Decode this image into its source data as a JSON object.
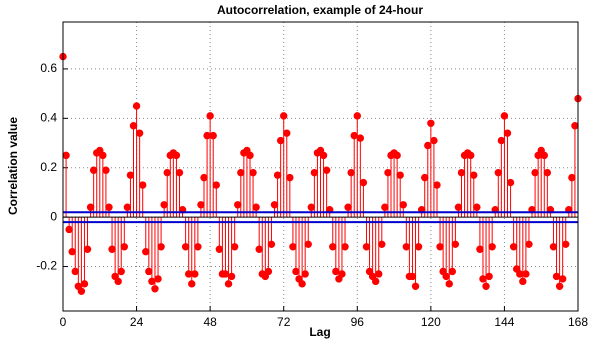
{
  "chart_data": {
    "type": "stem",
    "title": "Autocorrelation, example of 24-hour",
    "x_label": "Lag",
    "y_label": "Correlation value",
    "x": [
      0,
      1,
      2,
      3,
      4,
      5,
      6,
      7,
      8,
      9,
      10,
      11,
      12,
      13,
      14,
      15,
      16,
      17,
      18,
      19,
      20,
      21,
      22,
      23,
      24,
      25,
      26,
      27,
      28,
      29,
      30,
      31,
      32,
      33,
      34,
      35,
      36,
      37,
      38,
      39,
      40,
      41,
      42,
      43,
      44,
      45,
      46,
      47,
      48,
      49,
      50,
      51,
      52,
      53,
      54,
      55,
      56,
      57,
      58,
      59,
      60,
      61,
      62,
      63,
      64,
      65,
      66,
      67,
      68,
      69,
      70,
      71,
      72,
      73,
      74,
      75,
      76,
      77,
      78,
      79,
      80,
      81,
      82,
      83,
      84,
      85,
      86,
      87,
      88,
      89,
      90,
      91,
      92,
      93,
      94,
      95,
      96,
      97,
      98,
      99,
      100,
      101,
      102,
      103,
      104,
      105,
      106,
      107,
      108,
      109,
      110,
      111,
      112,
      113,
      114,
      115,
      116,
      117,
      118,
      119,
      120,
      121,
      122,
      123,
      124,
      125,
      126,
      127,
      128,
      129,
      130,
      131,
      132,
      133,
      134,
      135,
      136,
      137,
      138,
      139,
      140,
      141,
      142,
      143,
      144,
      145,
      146,
      147,
      148,
      149,
      150,
      151,
      152,
      153,
      154,
      155,
      156,
      157,
      158,
      159,
      160,
      161,
      162,
      163,
      164,
      165,
      166,
      167,
      168
    ],
    "series": [
      {
        "color": "#ff0000",
        "values": [
          0.65,
          0.25,
          -0.05,
          -0.14,
          -0.22,
          -0.28,
          -0.3,
          -0.27,
          -0.13,
          0.04,
          0.19,
          0.26,
          0.27,
          0.25,
          0.19,
          0.04,
          -0.13,
          -0.24,
          -0.26,
          -0.22,
          -0.12,
          0.04,
          0.17,
          0.37,
          0.45,
          0.34,
          0.13,
          -0.14,
          -0.22,
          -0.26,
          -0.29,
          -0.25,
          -0.12,
          0.05,
          0.18,
          0.25,
          0.26,
          0.25,
          0.18,
          0.03,
          -0.12,
          -0.23,
          -0.27,
          -0.23,
          -0.12,
          0.05,
          0.16,
          0.33,
          0.41,
          0.33,
          0.13,
          -0.13,
          -0.23,
          -0.23,
          -0.27,
          -0.24,
          -0.12,
          0.05,
          0.18,
          0.26,
          0.27,
          0.25,
          0.18,
          0.04,
          -0.13,
          -0.23,
          -0.24,
          -0.22,
          -0.11,
          0.05,
          0.17,
          0.31,
          0.41,
          0.34,
          0.16,
          -0.12,
          -0.22,
          -0.25,
          -0.27,
          -0.23,
          -0.11,
          0.04,
          0.18,
          0.26,
          0.27,
          0.25,
          0.19,
          0.03,
          -0.12,
          -0.22,
          -0.25,
          -0.23,
          -0.12,
          0.04,
          0.18,
          0.33,
          0.41,
          0.32,
          0.14,
          -0.12,
          -0.22,
          -0.24,
          -0.26,
          -0.23,
          -0.11,
          0.04,
          0.18,
          0.25,
          0.26,
          0.25,
          0.17,
          0.05,
          -0.12,
          -0.24,
          -0.24,
          -0.28,
          -0.12,
          0.03,
          0.16,
          0.29,
          0.38,
          0.31,
          0.13,
          -0.12,
          -0.22,
          -0.24,
          -0.27,
          -0.22,
          -0.11,
          0.04,
          0.18,
          0.25,
          0.26,
          0.25,
          0.17,
          0.04,
          -0.13,
          -0.25,
          -0.28,
          -0.24,
          -0.12,
          0.03,
          0.18,
          0.31,
          0.41,
          0.34,
          0.14,
          -0.12,
          -0.21,
          -0.23,
          -0.26,
          -0.23,
          -0.11,
          0.03,
          0.18,
          0.25,
          0.27,
          0.25,
          0.18,
          0.03,
          -0.12,
          -0.24,
          -0.28,
          -0.25,
          -0.11,
          0.03,
          0.16,
          0.37,
          0.48
        ]
      }
    ],
    "bounds": {
      "color": "#0000cc",
      "values": [
        0.02,
        -0.02
      ]
    },
    "xlim": [
      0,
      168
    ],
    "xticks": [
      0,
      24,
      48,
      72,
      96,
      120,
      144,
      168
    ],
    "ylim": [
      -0.38,
      0.79
    ],
    "yticks": [
      -0.2,
      0,
      0.2,
      0.4,
      0.6
    ],
    "grid": true
  }
}
